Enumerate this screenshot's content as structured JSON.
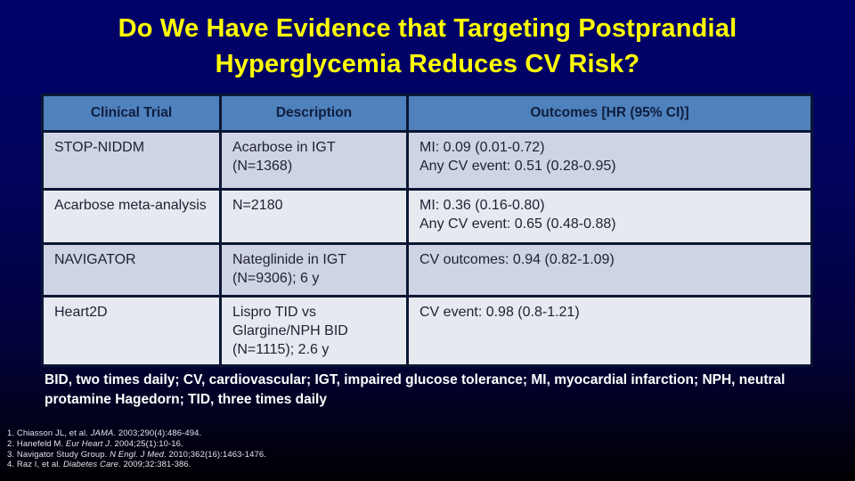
{
  "slide": {
    "title_line1": "Do We Have Evidence that Targeting Postprandial",
    "title_line2": "Hyperglycemia Reduces CV Risk?"
  },
  "table": {
    "columns": [
      "Clinical Trial",
      "Description",
      "Outcomes [HR (95% CI)]"
    ],
    "rows": [
      {
        "trial": "STOP-NIDDM",
        "description": "Acarbose in IGT (N=1368)",
        "outcomes": [
          "MI: 0.09 (0.01-0.72)",
          "Any CV event: 0.51 (0.28-0.95)"
        ]
      },
      {
        "trial": "Acarbose meta-analysis",
        "description": "N=2180",
        "outcomes": [
          "MI: 0.36 (0.16-0.80)",
          "Any CV event: 0.65 (0.48-0.88)"
        ]
      },
      {
        "trial": "NAVIGATOR",
        "description": "Nateglinide in IGT (N=9306); 6 y",
        "outcomes": [
          "CV outcomes: 0.94 (0.82-1.09)"
        ]
      },
      {
        "trial": "Heart2D",
        "description": "Lispro TID vs Glargine/NPH BID (N=1115); 2.6 y",
        "outcomes": [
          "CV event: 0.98 (0.8-1.21)"
        ]
      }
    ]
  },
  "footnote": "BID, two times daily; CV, cardiovascular; IGT, impaired glucose tolerance; MI, myocardial infarction; NPH, neutral protamine Hagedorn; TID, three times daily",
  "references": [
    {
      "pre": "1. Chiasson JL, et al. ",
      "journal": "JAMA",
      "post": ". 2003;290(4):486-494."
    },
    {
      "pre": "2. Hanefeld M. ",
      "journal": "Eur Heart J",
      "post": ". 2004;25(1):10-16."
    },
    {
      "pre": "3. Navigator Study Group. ",
      "journal": "N Engl. J Med",
      "post": ". 2010;362(16):1463-1476."
    },
    {
      "pre": "4. Raz I, et al. ",
      "journal": "Diabetes Care",
      "post": ". 2009;32:381-386."
    }
  ],
  "colors": {
    "background_top": "#01016B",
    "background_bottom": "#000002",
    "title_text": "#FFFF00",
    "table_header_bg": "#4F81BD",
    "table_header_text": "#0F1E3E",
    "row_band_dark": "#CFD4E4",
    "row_band_light": "#E7E9F0",
    "table_border": "#0A1633",
    "body_text": "#1E2133",
    "footnote_text": "#FFFFFF"
  }
}
